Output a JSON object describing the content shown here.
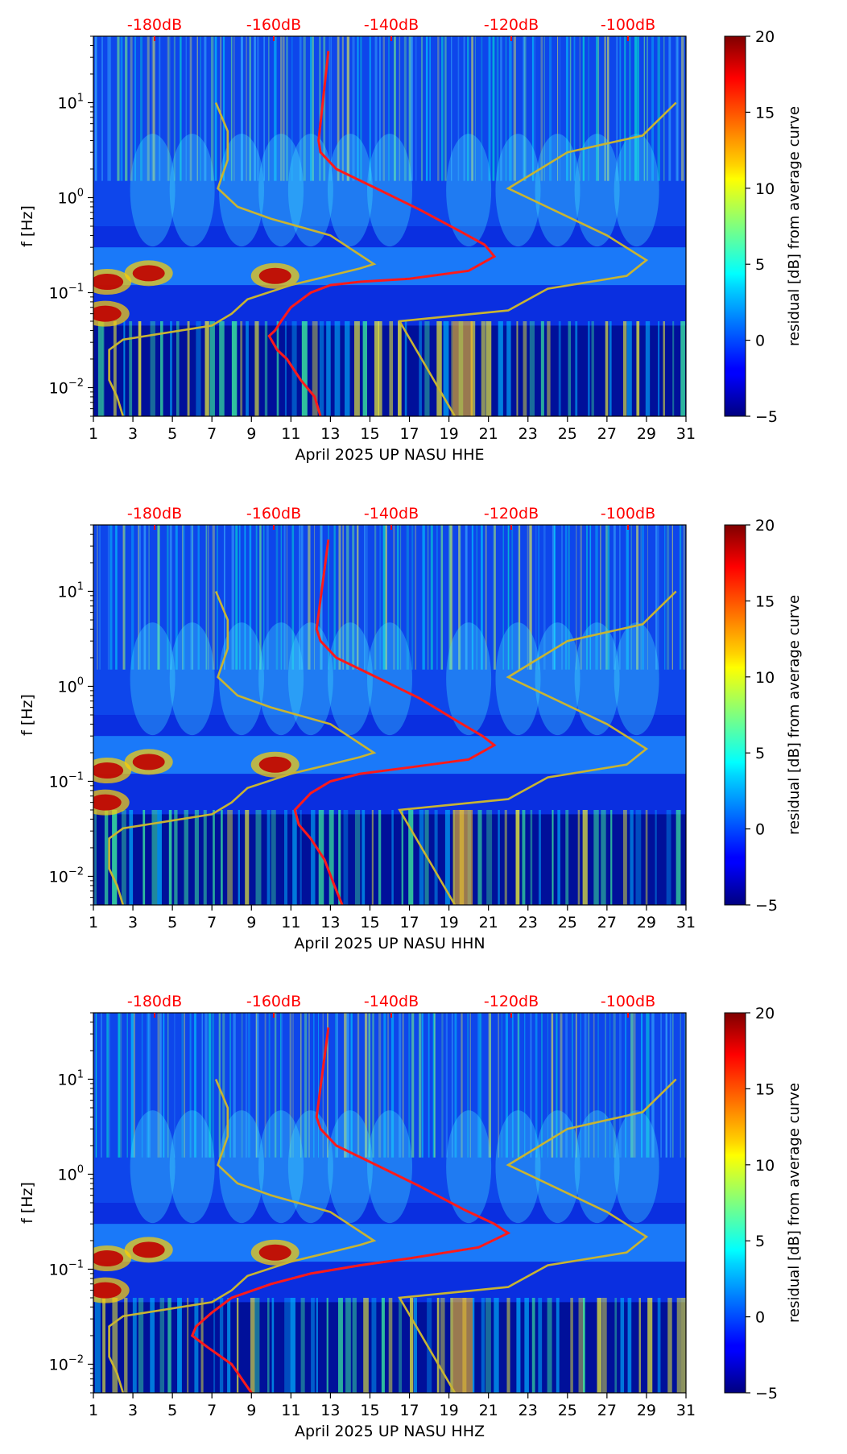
{
  "colors": {
    "psd_curve": "#ff1a1a",
    "model_curve": "#c8b432",
    "db_tick_text": "#ff0000"
  },
  "colormap": "jet",
  "chart_data": [
    {
      "type": "heatmap",
      "xlabel": "April 2025 UP NASU  HHE",
      "ylabel": "f [Hz]",
      "x_ticks": [
        "1",
        "3",
        "5",
        "7",
        "9",
        "11",
        "13",
        "15",
        "17",
        "19",
        "21",
        "23",
        "25",
        "27",
        "29",
        "31"
      ],
      "xlim": [
        1,
        31
      ],
      "y_scale": "log",
      "ylim": [
        0.005,
        50
      ],
      "y_ticks": [
        {
          "base": "10",
          "exp": "1"
        },
        {
          "base": "10",
          "exp": "0"
        },
        {
          "base": "10",
          "exp": "−1"
        },
        {
          "base": "10",
          "exp": "−2"
        }
      ],
      "db_axis_labels": [
        "-180dB",
        "-160dB",
        "-140dB",
        "-120dB",
        "-100dB"
      ],
      "colorbar": {
        "label": "residual [dB] from average curve",
        "ticks": [
          "20",
          "15",
          "10",
          "5",
          "0",
          "−5"
        ],
        "range": [
          -5,
          20
        ]
      },
      "series": [
        {
          "name": "",
          "role": "psd",
          "values": [
            [
              12.9,
              35
            ],
            [
              12.4,
              4
            ],
            [
              12.5,
              3
            ],
            [
              13.3,
              2
            ],
            [
              15.5,
              1.2
            ],
            [
              17.5,
              0.75
            ],
            [
              19.5,
              0.45
            ],
            [
              20.8,
              0.32
            ],
            [
              21.3,
              0.24
            ],
            [
              20.0,
              0.17
            ],
            [
              17.0,
              0.14
            ],
            [
              14.5,
              0.13
            ],
            [
              13.0,
              0.12
            ],
            [
              12.0,
              0.1
            ],
            [
              11.0,
              0.07
            ],
            [
              10.5,
              0.05
            ],
            [
              10.2,
              0.04
            ],
            [
              9.9,
              0.035
            ],
            [
              10.3,
              0.025
            ],
            [
              10.8,
              0.02
            ],
            [
              11.5,
              0.012
            ],
            [
              12.2,
              0.008
            ],
            [
              12.5,
              0.005
            ]
          ]
        },
        {
          "name": "",
          "role": "low-model",
          "values": [
            [
              2.5,
              0.005
            ],
            [
              2.2,
              0.008
            ],
            [
              1.8,
              0.012
            ],
            [
              1.8,
              0.025
            ],
            [
              2.5,
              0.032
            ],
            [
              7.0,
              0.045
            ],
            [
              8.0,
              0.06
            ],
            [
              8.8,
              0.085
            ],
            [
              11.0,
              0.12
            ],
            [
              13.5,
              0.16
            ],
            [
              14.5,
              0.18
            ],
            [
              15.2,
              0.2
            ],
            [
              13.0,
              0.4
            ],
            [
              10.0,
              0.6
            ],
            [
              8.3,
              0.8
            ],
            [
              7.3,
              1.25
            ],
            [
              7.8,
              2.5
            ],
            [
              7.8,
              5.0
            ],
            [
              7.2,
              10
            ]
          ]
        },
        {
          "name": "",
          "role": "high-model",
          "values": [
            [
              19.3,
              0.005
            ],
            [
              16.5,
              0.05
            ],
            [
              22.0,
              0.065
            ],
            [
              24.0,
              0.11
            ],
            [
              28.0,
              0.15
            ],
            [
              29.0,
              0.22
            ],
            [
              27.0,
              0.4
            ],
            [
              22.0,
              1.25
            ],
            [
              25.0,
              3.0
            ],
            [
              28.8,
              4.5
            ],
            [
              30.5,
              10
            ]
          ]
        }
      ]
    },
    {
      "type": "heatmap",
      "xlabel": "April 2025 UP NASU  HHN",
      "ylabel": "f [Hz]",
      "x_ticks": [
        "1",
        "3",
        "5",
        "7",
        "9",
        "11",
        "13",
        "15",
        "17",
        "19",
        "21",
        "23",
        "25",
        "27",
        "29",
        "31"
      ],
      "xlim": [
        1,
        31
      ],
      "y_scale": "log",
      "ylim": [
        0.005,
        50
      ],
      "y_ticks": [
        {
          "base": "10",
          "exp": "1"
        },
        {
          "base": "10",
          "exp": "0"
        },
        {
          "base": "10",
          "exp": "−1"
        },
        {
          "base": "10",
          "exp": "−2"
        }
      ],
      "db_axis_labels": [
        "-180dB",
        "-160dB",
        "-140dB",
        "-120dB",
        "-100dB"
      ],
      "colorbar": {
        "label": "residual [dB] from average curve",
        "ticks": [
          "20",
          "15",
          "10",
          "5",
          "0",
          "−5"
        ],
        "range": [
          -5,
          20
        ]
      },
      "series": [
        {
          "name": "",
          "role": "psd",
          "values": [
            [
              12.9,
              35
            ],
            [
              12.3,
              4
            ],
            [
              12.5,
              3
            ],
            [
              13.3,
              2
            ],
            [
              15.5,
              1.2
            ],
            [
              17.5,
              0.75
            ],
            [
              19.5,
              0.42
            ],
            [
              20.7,
              0.3
            ],
            [
              21.3,
              0.24
            ],
            [
              20.0,
              0.17
            ],
            [
              17.0,
              0.14
            ],
            [
              14.5,
              0.12
            ],
            [
              13.0,
              0.1
            ],
            [
              12.0,
              0.075
            ],
            [
              11.2,
              0.05
            ],
            [
              11.4,
              0.035
            ],
            [
              12.0,
              0.025
            ],
            [
              12.7,
              0.015
            ],
            [
              13.2,
              0.008
            ],
            [
              13.6,
              0.005
            ]
          ]
        },
        {
          "name": "",
          "role": "low-model",
          "values": [
            [
              2.5,
              0.005
            ],
            [
              2.2,
              0.008
            ],
            [
              1.8,
              0.012
            ],
            [
              1.8,
              0.025
            ],
            [
              2.5,
              0.032
            ],
            [
              7.0,
              0.045
            ],
            [
              8.0,
              0.06
            ],
            [
              8.8,
              0.085
            ],
            [
              11.0,
              0.12
            ],
            [
              13.5,
              0.16
            ],
            [
              14.5,
              0.18
            ],
            [
              15.2,
              0.2
            ],
            [
              13.0,
              0.4
            ],
            [
              10.0,
              0.6
            ],
            [
              8.3,
              0.8
            ],
            [
              7.3,
              1.25
            ],
            [
              7.8,
              2.5
            ],
            [
              7.8,
              5.0
            ],
            [
              7.2,
              10
            ]
          ]
        },
        {
          "name": "",
          "role": "high-model",
          "values": [
            [
              19.3,
              0.005
            ],
            [
              16.5,
              0.05
            ],
            [
              22.0,
              0.065
            ],
            [
              24.0,
              0.11
            ],
            [
              28.0,
              0.15
            ],
            [
              29.0,
              0.22
            ],
            [
              27.0,
              0.4
            ],
            [
              22.0,
              1.25
            ],
            [
              25.0,
              3.0
            ],
            [
              28.8,
              4.5
            ],
            [
              30.5,
              10
            ]
          ]
        }
      ]
    },
    {
      "type": "heatmap",
      "xlabel": "April 2025 UP NASU  HHZ",
      "ylabel": "f [Hz]",
      "x_ticks": [
        "1",
        "3",
        "5",
        "7",
        "9",
        "11",
        "13",
        "15",
        "17",
        "19",
        "21",
        "23",
        "25",
        "27",
        "29",
        "31"
      ],
      "xlim": [
        1,
        31
      ],
      "y_scale": "log",
      "ylim": [
        0.005,
        50
      ],
      "y_ticks": [
        {
          "base": "10",
          "exp": "1"
        },
        {
          "base": "10",
          "exp": "0"
        },
        {
          "base": "10",
          "exp": "−1"
        },
        {
          "base": "10",
          "exp": "−2"
        }
      ],
      "db_axis_labels": [
        "-180dB",
        "-160dB",
        "-140dB",
        "-120dB",
        "-100dB"
      ],
      "colorbar": {
        "label": "residual [dB] from average curve",
        "ticks": [
          "20",
          "15",
          "10",
          "5",
          "0",
          "−5"
        ],
        "range": [
          -5,
          20
        ]
      },
      "series": [
        {
          "name": "",
          "role": "psd",
          "values": [
            [
              12.9,
              35
            ],
            [
              12.3,
              4
            ],
            [
              12.5,
              3
            ],
            [
              13.3,
              2
            ],
            [
              15.5,
              1.2
            ],
            [
              17.5,
              0.75
            ],
            [
              19.8,
              0.42
            ],
            [
              21.3,
              0.3
            ],
            [
              22.0,
              0.24
            ],
            [
              20.5,
              0.17
            ],
            [
              17.0,
              0.13
            ],
            [
              14.5,
              0.11
            ],
            [
              12.0,
              0.09
            ],
            [
              10.0,
              0.07
            ],
            [
              8.0,
              0.05
            ],
            [
              7.0,
              0.035
            ],
            [
              6.2,
              0.025
            ],
            [
              6.0,
              0.02
            ],
            [
              6.8,
              0.015
            ],
            [
              8.0,
              0.01
            ],
            [
              9.0,
              0.005
            ]
          ]
        },
        {
          "name": "",
          "role": "low-model",
          "values": [
            [
              2.5,
              0.005
            ],
            [
              2.2,
              0.008
            ],
            [
              1.8,
              0.012
            ],
            [
              1.8,
              0.025
            ],
            [
              2.5,
              0.032
            ],
            [
              7.0,
              0.045
            ],
            [
              8.0,
              0.06
            ],
            [
              8.8,
              0.085
            ],
            [
              11.0,
              0.12
            ],
            [
              13.5,
              0.16
            ],
            [
              14.5,
              0.18
            ],
            [
              15.2,
              0.2
            ],
            [
              13.0,
              0.4
            ],
            [
              10.0,
              0.6
            ],
            [
              8.3,
              0.8
            ],
            [
              7.3,
              1.25
            ],
            [
              7.8,
              2.5
            ],
            [
              7.8,
              5.0
            ],
            [
              7.2,
              10
            ]
          ]
        },
        {
          "name": "",
          "role": "high-model",
          "values": [
            [
              19.3,
              0.005
            ],
            [
              16.5,
              0.05
            ],
            [
              22.0,
              0.065
            ],
            [
              24.0,
              0.11
            ],
            [
              28.0,
              0.15
            ],
            [
              29.0,
              0.22
            ],
            [
              27.0,
              0.4
            ],
            [
              22.0,
              1.25
            ],
            [
              25.0,
              3.0
            ],
            [
              28.8,
              4.5
            ],
            [
              30.5,
              10
            ]
          ]
        }
      ]
    }
  ]
}
